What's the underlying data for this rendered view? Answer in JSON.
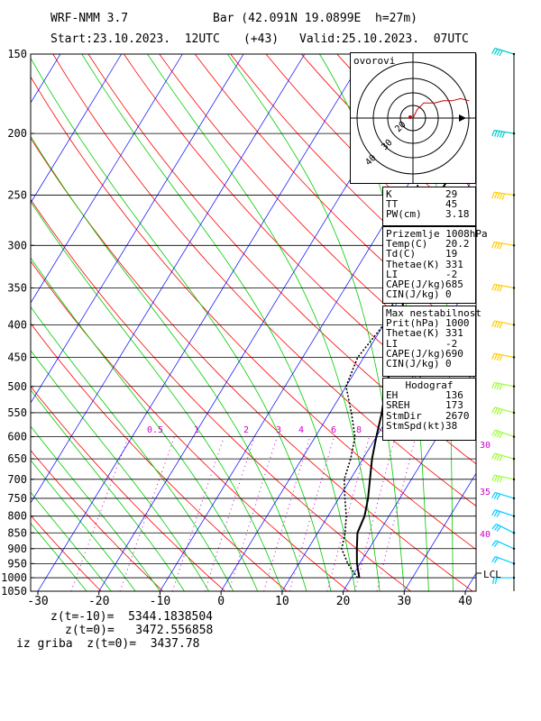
{
  "header": {
    "model": "WRF-NMM 3.7",
    "station": "Bar (42.091N 19.0899E  h=27m)",
    "start": "Start:23.10.2023.  12UTC",
    "lead": "(+43)",
    "valid": "Valid:25.10.2023.  07UTC"
  },
  "hodo": {
    "title": "ovorovi",
    "labels": [
      "20",
      "30",
      "40"
    ]
  },
  "indices": [
    {
      "k": "K",
      "v": "29"
    },
    {
      "k": "TT",
      "v": "45"
    },
    {
      "k": "PW(cm)",
      "v": "3.18"
    }
  ],
  "surface": {
    "title": "Prizemlje 1008hPa",
    "rows": [
      {
        "k": "Temp(C)",
        "v": "20.2"
      },
      {
        "k": "Td(C)",
        "v": "19"
      },
      {
        "k": "Thetae(K)",
        "v": "331"
      },
      {
        "k": "LI",
        "v": "-2"
      },
      {
        "k": "CAPE(J/kg)",
        "v": "685"
      },
      {
        "k": "CIN(J/kg)",
        "v": "0"
      }
    ]
  },
  "unstable": {
    "title": "Max nestabilnost",
    "rows": [
      {
        "k": "Prit(hPa)",
        "v": "1000"
      },
      {
        "k": "Thetae(K)",
        "v": "331"
      },
      {
        "k": "LI",
        "v": "-2"
      },
      {
        "k": "CAPE(J/kg)",
        "v": "690"
      },
      {
        "k": "CIN(J/kg)",
        "v": "0"
      }
    ]
  },
  "hodograph_box": {
    "title": "Hodograf",
    "rows": [
      {
        "k": "EH",
        "v": "136"
      },
      {
        "k": "SREH",
        "v": "173"
      },
      {
        "k": "StmDir",
        "v": "2670"
      },
      {
        "k": "StmSpd(kt)",
        "v": "38"
      }
    ]
  },
  "footer": {
    "line1": "z(t=-10)=  5344.1838504",
    "line2": "z(t=0)=   3472.556858",
    "line3": "iz griba  z(t=0)=  3437.78"
  },
  "colors": {
    "isotherm": "#0000ff",
    "dry_adiabat": "#ff0000",
    "moist_adiabat": "#00cc00",
    "mixing_ratio": "#cc00cc",
    "wind": "#ffff00"
  },
  "chart_data": {
    "type": "line",
    "title": "",
    "xlabel": "",
    "ylabel": "",
    "x_ticks": [
      "-30",
      "-20",
      "-10",
      "0",
      "10",
      "20",
      "30",
      "40"
    ],
    "xlim": [
      -30,
      40
    ],
    "ylim_hpa": [
      1050,
      150
    ],
    "y_ticks": [
      "150",
      "200",
      "250",
      "300",
      "350",
      "400",
      "450",
      "500",
      "550",
      "600",
      "650",
      "700",
      "750",
      "800",
      "850",
      "900",
      "950",
      "1000",
      "1050"
    ],
    "mixing_ratio_labels": [
      "0.5",
      "1",
      "2",
      "3",
      "4",
      "6",
      "8"
    ],
    "speed_labels": [
      "30",
      "35",
      "40"
    ],
    "lcl_label": "LCL",
    "series": [
      {
        "name": "",
        "style": "solid",
        "points": [
          [
            21.3,
            1000
          ],
          [
            19.5,
            950
          ],
          [
            18.0,
            900
          ],
          [
            16.5,
            850
          ],
          [
            16.0,
            800
          ],
          [
            14.8,
            750
          ],
          [
            13.2,
            700
          ],
          [
            11.5,
            650
          ],
          [
            10.0,
            600
          ],
          [
            8.5,
            550
          ],
          [
            6.5,
            500
          ],
          [
            5.0,
            450
          ],
          [
            2.5,
            400
          ],
          [
            0.0,
            350
          ],
          [
            -3.0,
            300
          ],
          [
            -4.0,
            250
          ],
          [
            -4.0,
            200
          ],
          [
            -2.0,
            150
          ]
        ]
      },
      {
        "name": "",
        "style": "dotted",
        "points": [
          [
            21.0,
            1000
          ],
          [
            18.0,
            950
          ],
          [
            15.5,
            900
          ],
          [
            14.5,
            850
          ],
          [
            13.0,
            800
          ],
          [
            11.0,
            750
          ],
          [
            9.0,
            700
          ],
          [
            8.0,
            650
          ],
          [
            6.5,
            600
          ],
          [
            3.5,
            550
          ],
          [
            0.0,
            500
          ],
          [
            -1.0,
            450
          ],
          [
            0.0,
            400
          ],
          [
            -1.0,
            350
          ],
          [
            -3.5,
            300
          ],
          [
            -7.5,
            250
          ],
          [
            -13.0,
            200
          ],
          [
            -10.0,
            150
          ]
        ]
      }
    ],
    "wind_barbs": [
      {
        "p": 1000,
        "u": -6,
        "v": 0
      },
      {
        "p": 950,
        "u": -8,
        "v": 3
      },
      {
        "p": 900,
        "u": -9,
        "v": 4
      },
      {
        "p": 850,
        "u": -10,
        "v": 5
      },
      {
        "p": 800,
        "u": -12,
        "v": 4
      },
      {
        "p": 750,
        "u": -13,
        "v": 4
      },
      {
        "p": 700,
        "u": -14,
        "v": 3
      },
      {
        "p": 650,
        "u": -14,
        "v": 4
      },
      {
        "p": 600,
        "u": -14,
        "v": 5
      },
      {
        "p": 550,
        "u": -14,
        "v": 4
      },
      {
        "p": 500,
        "u": -15,
        "v": 3
      },
      {
        "p": 450,
        "u": -15,
        "v": 3
      },
      {
        "p": 400,
        "u": -15,
        "v": 3
      },
      {
        "p": 350,
        "u": -16,
        "v": 3
      },
      {
        "p": 300,
        "u": -17,
        "v": 3
      },
      {
        "p": 250,
        "u": -20,
        "v": 3
      },
      {
        "p": 200,
        "u": -18,
        "v": 3
      },
      {
        "p": 150,
        "u": -16,
        "v": 5
      }
    ],
    "hodograph": {
      "points": [
        [
          0,
          0
        ],
        [
          2,
          4
        ],
        [
          5,
          7
        ],
        [
          10,
          7
        ],
        [
          14,
          8
        ],
        [
          18,
          8
        ],
        [
          22,
          9
        ],
        [
          26,
          8
        ]
      ]
    }
  }
}
